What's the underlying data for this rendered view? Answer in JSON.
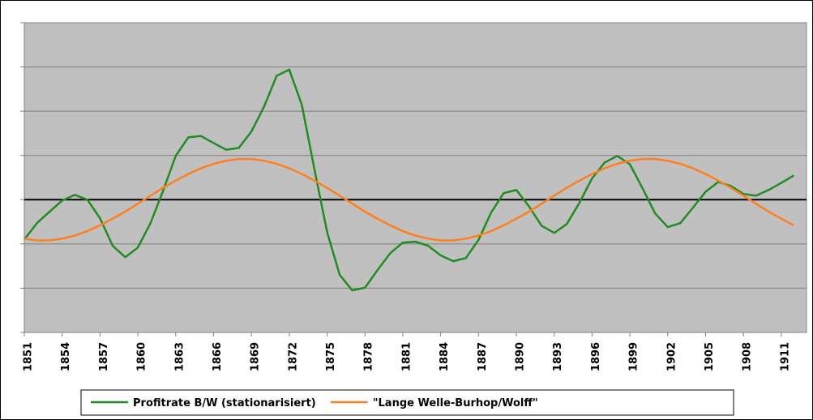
{
  "chart_data": {
    "type": "line",
    "x": [
      1851,
      1852,
      1853,
      1854,
      1855,
      1856,
      1857,
      1858,
      1859,
      1860,
      1861,
      1862,
      1863,
      1864,
      1865,
      1866,
      1867,
      1868,
      1869,
      1870,
      1871,
      1872,
      1873,
      1874,
      1875,
      1876,
      1877,
      1878,
      1879,
      1880,
      1881,
      1882,
      1883,
      1884,
      1885,
      1886,
      1887,
      1888,
      1889,
      1890,
      1891,
      1892,
      1893,
      1894,
      1895,
      1896,
      1897,
      1898,
      1899,
      1900,
      1901,
      1902,
      1903,
      1904,
      1905,
      1906,
      1907,
      1908,
      1909,
      1910,
      1911,
      1912
    ],
    "series": [
      {
        "name": "Profitrate B/W (stationarisiert)",
        "color": "#228b22",
        "values": [
          -0.9,
          -0.53,
          -0.27,
          -0.02,
          0.11,
          0,
          -0.42,
          -1.04,
          -1.3,
          -1.08,
          -0.53,
          0.2,
          0.99,
          1.41,
          1.44,
          1.28,
          1.13,
          1.17,
          1.54,
          2.1,
          2.8,
          2.94,
          2.14,
          0.68,
          -0.73,
          -1.7,
          -2.05,
          -1.99,
          -1.59,
          -1.21,
          -0.97,
          -0.95,
          -1.04,
          -1.26,
          -1.39,
          -1.32,
          -0.91,
          -0.29,
          0.15,
          0.22,
          -0.15,
          -0.59,
          -0.75,
          -0.55,
          -0.07,
          0.48,
          0.84,
          0.99,
          0.8,
          0.26,
          -0.31,
          -0.62,
          -0.53,
          -0.18,
          0.18,
          0.4,
          0.31,
          0.13,
          0.09,
          0.22,
          0.38,
          0.55
        ]
      },
      {
        "name": "\"Lange Welle-Burhop/Wolff\"",
        "color": "#ff7f1e",
        "values": [
          -0.88,
          -0.92,
          -0.92,
          -0.88,
          -0.81,
          -0.71,
          -0.58,
          -0.43,
          -0.27,
          -0.09,
          0.09,
          0.27,
          0.43,
          0.58,
          0.71,
          0.81,
          0.88,
          0.92,
          0.92,
          0.88,
          0.81,
          0.71,
          0.58,
          0.43,
          0.27,
          0.09,
          -0.09,
          -0.27,
          -0.43,
          -0.58,
          -0.71,
          -0.81,
          -0.88,
          -0.92,
          -0.92,
          -0.88,
          -0.81,
          -0.71,
          -0.58,
          -0.43,
          -0.27,
          -0.09,
          0.09,
          0.27,
          0.43,
          0.58,
          0.71,
          0.81,
          0.88,
          0.92,
          0.92,
          0.88,
          0.81,
          0.71,
          0.58,
          0.43,
          0.27,
          0.09,
          -0.09,
          -0.27,
          -0.43,
          -0.58
        ]
      }
    ],
    "xlim": [
      1851,
      1913
    ],
    "xticks": [
      1851,
      1854,
      1857,
      1860,
      1863,
      1866,
      1869,
      1872,
      1875,
      1878,
      1881,
      1884,
      1887,
      1890,
      1893,
      1896,
      1899,
      1902,
      1905,
      1908,
      1911
    ],
    "ylim": [
      -3,
      4
    ],
    "yticks": [
      -3,
      -2,
      -1,
      0,
      1,
      2,
      3,
      4
    ],
    "grid": true,
    "zero_line": true,
    "legend": "bottom"
  }
}
